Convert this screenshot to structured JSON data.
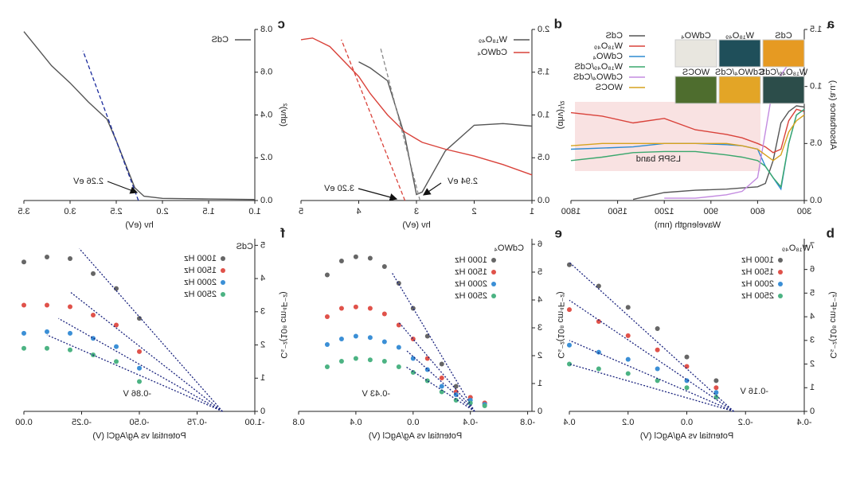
{
  "chart_data": [
    {
      "panel": "a",
      "type": "line",
      "xlabel": "Wavelength (nm)",
      "ylabel": "Absorbance (a.u.)",
      "xlim": [
        300,
        1800
      ],
      "ylim": [
        0,
        1.5
      ],
      "xticks": [
        300,
        600,
        900,
        1200,
        1500,
        1800
      ],
      "yticks": [
        {
          "value": 0,
          "label": "0.0"
        },
        {
          "value": 0.5,
          "label": "0.5"
        },
        {
          "value": 1,
          "label": "1.0"
        },
        {
          "value": 1.5,
          "label": "1.5"
        }
      ],
      "x": [
        300,
        350,
        400,
        450,
        500,
        550,
        600,
        700,
        800,
        1000,
        1200,
        1400,
        1600,
        1800
      ],
      "series": [
        {
          "name": "CdS",
          "color": "#555555",
          "values": [
            0.82,
            0.83,
            0.78,
            0.68,
            0.35,
            0.15,
            0.12,
            0.11,
            0.1,
            0.09,
            0.07,
            0.01,
            null,
            null
          ]
        },
        {
          "name": "W₁₈O₄₉",
          "color": "#d9423a",
          "values": [
            0.78,
            0.8,
            0.7,
            0.45,
            0.42,
            0.47,
            0.5,
            0.55,
            0.58,
            0.62,
            0.72,
            0.68,
            0.74,
            0.77
          ]
        },
        {
          "name": "CdWO₄",
          "color": "#2e8bd1",
          "values": [
            0.8,
            0.75,
            0.5,
            0.1,
            0.2,
            0.3,
            0.45,
            0.48,
            0.49,
            0.5,
            0.5,
            0.47,
            0.46,
            0.45
          ]
        },
        {
          "name": "W₁₈O₄₉/CdS",
          "color": "#3aa76d",
          "values": [
            0.8,
            0.75,
            0.5,
            0.12,
            0.2,
            0.3,
            0.35,
            0.38,
            0.4,
            0.43,
            0.43,
            0.42,
            0.38,
            0.35
          ]
        },
        {
          "name": "CdWO₄/CdS",
          "color": "#c38be0",
          "values": [
            1.35,
            1.3,
            1.2,
            1.1,
            1.0,
            0.6,
            0.2,
            0.08,
            0.05,
            0.02,
            0.02,
            null,
            null,
            null
          ]
        },
        {
          "name": "WOCS",
          "color": "#d6a21e",
          "values": [
            0.75,
            0.7,
            0.6,
            0.4,
            0.35,
            0.4,
            0.45,
            0.48,
            0.5,
            0.5,
            0.5,
            0.5,
            0.5,
            0.48
          ]
        }
      ],
      "annotations": [
        "LSPR band"
      ],
      "inset": [
        {
          "label": "CdS",
          "color": "#e69a22"
        },
        {
          "label": "W₁₈O₄₉",
          "color": "#1f4f5a"
        },
        {
          "label": "CdWO₄",
          "color": "#e8e6df"
        },
        {
          "label": "W₁₈O₄₉/CdS",
          "color": "#2c4d4a"
        },
        {
          "label": "CdWO₄/CdS",
          "color": "#e3a526"
        },
        {
          "label": "WOCS",
          "color": "#4e6d2e"
        }
      ]
    },
    {
      "panel": "d",
      "type": "line",
      "xlabel": "hν (eV)",
      "ylabel": "(αhν)¹/²",
      "xlim": [
        1,
        5
      ],
      "ylim": [
        0,
        2
      ],
      "xticks": [
        1,
        2,
        3,
        4,
        5
      ],
      "yticks": [
        {
          "value": 0,
          "label": "0.0"
        },
        {
          "value": 0.5,
          "label": "0.5"
        },
        {
          "value": 1,
          "label": "1.0"
        },
        {
          "value": 1.5,
          "label": "1.5"
        },
        {
          "value": 2,
          "label": "2.0"
        }
      ],
      "x": [
        1.0,
        1.5,
        2.0,
        2.5,
        2.9,
        3.0,
        3.2,
        3.5,
        3.8,
        4.0,
        4.5,
        4.8,
        5.0
      ],
      "series": [
        {
          "name": "W₁₈O₄₉",
          "color": "#555555",
          "values": [
            0.87,
            0.9,
            0.88,
            0.58,
            0.1,
            0.07,
            0.75,
            1.4,
            1.55,
            1.62,
            null,
            null,
            null
          ]
        },
        {
          "name": "CdWO₄",
          "color": "#d9423a",
          "values": [
            0.3,
            0.42,
            0.52,
            0.6,
            0.68,
            0.72,
            0.8,
            1.0,
            1.25,
            1.45,
            1.8,
            1.9,
            1.88
          ]
        }
      ],
      "fit_lines": [
        {
          "color": "#888888",
          "x": [
            2.94,
            3.62
          ],
          "values": [
            0,
            1.78
          ]
        },
        {
          "color": "#d9423a",
          "x": [
            3.2,
            4.3
          ],
          "values": [
            0,
            1.88
          ]
        }
      ],
      "annotations": [
        "3.20 eV",
        "2.94 eV"
      ]
    },
    {
      "panel": "c",
      "type": "line",
      "xlabel": "hν (eV)",
      "ylabel": "(αhν)²",
      "xlim": [
        1,
        3.5
      ],
      "ylim": [
        0,
        0.8
      ],
      "xticks": [
        {
          "value": 1,
          "label": "1.0"
        },
        1.5,
        {
          "value": 2,
          "label": "2.0"
        },
        2.5,
        {
          "value": 3,
          "label": "3.0"
        },
        3.5
      ],
      "yticks": [
        {
          "value": 0,
          "label": "0.0"
        },
        0.2,
        0.4,
        0.6,
        0.8
      ],
      "x": [
        1.0,
        1.5,
        2.0,
        2.2,
        2.3,
        2.4,
        2.5,
        2.6,
        2.8,
        3.0,
        3.2,
        3.5
      ],
      "series": [
        {
          "name": "CdS",
          "color": "#555555",
          "values": [
            0.005,
            0.007,
            0.01,
            0.02,
            0.06,
            0.17,
            0.28,
            0.38,
            0.46,
            0.55,
            0.63,
            0.79
          ]
        }
      ],
      "fit_lines": [
        {
          "color": "#1a2a9c",
          "x": [
            2.26,
            2.86
          ],
          "values": [
            0,
            0.7
          ]
        }
      ],
      "annotations": [
        "2.26 eV"
      ]
    },
    {
      "panel": "b",
      "type": "scatter",
      "xlabel": "Potential vs Ag/AgCl (V)",
      "ylabel": "Cₛ⁻²(10⁸ cm⁴F⁻²)",
      "legend_title": "W₁₈O₄₉",
      "xlim": [
        -0.4,
        0.4
      ],
      "ylim": [
        0,
        7.3
      ],
      "xticks": [
        -0.4,
        -0.2,
        {
          "value": 0,
          "label": "0.0"
        },
        0.2,
        0.4
      ],
      "yticks": [
        0,
        1,
        2,
        3,
        4,
        5,
        6,
        7
      ],
      "x": [
        0.4,
        0.3,
        0.2,
        0.1,
        0.0,
        -0.1
      ],
      "series": [
        {
          "name": "1000 Hz",
          "color": "#666666",
          "values": [
            6.2,
            5.3,
            4.4,
            3.5,
            2.3,
            1.3
          ]
        },
        {
          "name": "1500 Hz",
          "color": "#e0524a",
          "values": [
            4.3,
            3.8,
            3.2,
            2.6,
            1.9,
            1.0
          ]
        },
        {
          "name": "2000 Hz",
          "color": "#3b8fd6",
          "values": [
            2.8,
            2.5,
            2.2,
            1.8,
            1.3,
            0.8
          ]
        },
        {
          "name": "2500 Hz",
          "color": "#4cb383",
          "values": [
            2.0,
            1.8,
            1.6,
            1.3,
            1.0,
            0.6
          ]
        }
      ],
      "fit_lines": [
        {
          "color": "#1a237e",
          "x": [
            -0.16,
            0.4
          ],
          "values": [
            0,
            6.3
          ]
        },
        {
          "color": "#1a237e",
          "x": [
            -0.16,
            0.4
          ],
          "values": [
            0,
            4.7
          ]
        },
        {
          "color": "#1a237e",
          "x": [
            -0.16,
            0.4
          ],
          "values": [
            0,
            3.0
          ]
        },
        {
          "color": "#1a237e",
          "x": [
            -0.16,
            0.4
          ],
          "values": [
            0,
            2.0
          ]
        }
      ],
      "annotations": [
        "-0.16 V"
      ]
    },
    {
      "panel": "e",
      "type": "scatter",
      "xlabel": "Potential vs Ag/AgCl (V)",
      "ylabel": "Cₛ⁻²(10⁸ cm⁴F⁻²)",
      "legend_title": "CdWO₄",
      "xlim": [
        -0.83,
        0.8
      ],
      "ylim": [
        0,
        6.2
      ],
      "xticks": [
        -0.8,
        -0.4,
        {
          "value": 0,
          "label": "0.0"
        },
        0.4,
        0.8
      ],
      "yticks": [
        0,
        1,
        2,
        3,
        4,
        5,
        6
      ],
      "x": [
        0.6,
        0.5,
        0.4,
        0.3,
        0.2,
        0.1,
        0.0,
        -0.1,
        -0.2,
        -0.3,
        -0.4,
        -0.5
      ],
      "series": [
        {
          "name": "1000 Hz",
          "color": "#666666",
          "values": [
            4.9,
            5.4,
            5.55,
            5.5,
            5.2,
            4.6,
            3.7,
            2.7,
            1.7,
            0.9,
            0.5,
            0.3
          ]
        },
        {
          "name": "1500 Hz",
          "color": "#e0524a",
          "values": [
            3.4,
            3.7,
            3.75,
            3.7,
            3.5,
            3.1,
            2.6,
            1.9,
            1.2,
            0.7,
            0.5,
            0.3
          ]
        },
        {
          "name": "2000 Hz",
          "color": "#3b8fd6",
          "values": [
            2.4,
            2.6,
            2.7,
            2.65,
            2.5,
            2.3,
            1.9,
            1.5,
            0.9,
            0.6,
            0.4,
            0.25
          ]
        },
        {
          "name": "2500 Hz",
          "color": "#4cb383",
          "values": [
            1.6,
            1.8,
            1.9,
            1.85,
            1.8,
            1.6,
            1.4,
            1.1,
            0.7,
            0.4,
            0.3,
            0.2
          ]
        }
      ],
      "fit_lines": [
        {
          "color": "#1a237e",
          "x": [
            -0.43,
            0.15
          ],
          "values": [
            0,
            5.0
          ]
        },
        {
          "color": "#1a237e",
          "x": [
            -0.43,
            0.1
          ],
          "values": [
            0,
            3.2
          ]
        },
        {
          "color": "#1a237e",
          "x": [
            -0.43,
            0.05
          ],
          "values": [
            0,
            2.2
          ]
        },
        {
          "color": "#1a237e",
          "x": [
            -0.43,
            0.05
          ],
          "values": [
            0,
            1.6
          ]
        }
      ],
      "annotations": [
        "-0.43 V"
      ]
    },
    {
      "panel": "f",
      "type": "scatter",
      "xlabel": "Potential vs Ag/AgCl (V)",
      "ylabel": "Cₛ⁻²(10⁸ cm⁴F⁻²)",
      "legend_title": "CdS",
      "xlim": [
        -1,
        0
      ],
      "ylim": [
        0,
        5.2
      ],
      "xticks": [
        {
          "value": -1,
          "label": "-1.00"
        },
        {
          "value": -0.75,
          "label": "-0.75"
        },
        {
          "value": -0.5,
          "label": "-0.50"
        },
        {
          "value": -0.25,
          "label": "-0.25"
        },
        {
          "value": 0,
          "label": "0.00"
        }
      ],
      "yticks": [
        0,
        1,
        2,
        3,
        4,
        5
      ],
      "x": [
        0,
        -0.1,
        -0.2,
        -0.3,
        -0.4,
        -0.5
      ],
      "series": [
        {
          "name": "1000 Hz",
          "color": "#666666",
          "values": [
            4.5,
            4.65,
            4.6,
            4.15,
            3.7,
            2.8
          ]
        },
        {
          "name": "1500 Hz",
          "color": "#e0524a",
          "values": [
            3.2,
            3.2,
            3.15,
            2.9,
            2.6,
            1.8
          ]
        },
        {
          "name": "2000 Hz",
          "color": "#3b8fd6",
          "values": [
            2.35,
            2.4,
            2.35,
            2.2,
            1.95,
            1.3
          ]
        },
        {
          "name": "2500 Hz",
          "color": "#4cb383",
          "values": [
            1.9,
            1.9,
            1.85,
            1.7,
            1.5,
            0.9
          ]
        }
      ],
      "fit_lines": [
        {
          "color": "#1a237e",
          "x": [
            -0.86,
            -0.24
          ],
          "values": [
            0,
            4.9
          ]
        },
        {
          "color": "#1a237e",
          "x": [
            -0.86,
            -0.2
          ],
          "values": [
            0,
            3.6
          ]
        },
        {
          "color": "#1a237e",
          "x": [
            -0.86,
            -0.15
          ],
          "values": [
            0,
            2.8
          ]
        },
        {
          "color": "#1a237e",
          "x": [
            -0.86,
            -0.1
          ],
          "values": [
            0,
            2.3
          ]
        }
      ],
      "annotations": [
        "-0.86 V"
      ]
    }
  ]
}
